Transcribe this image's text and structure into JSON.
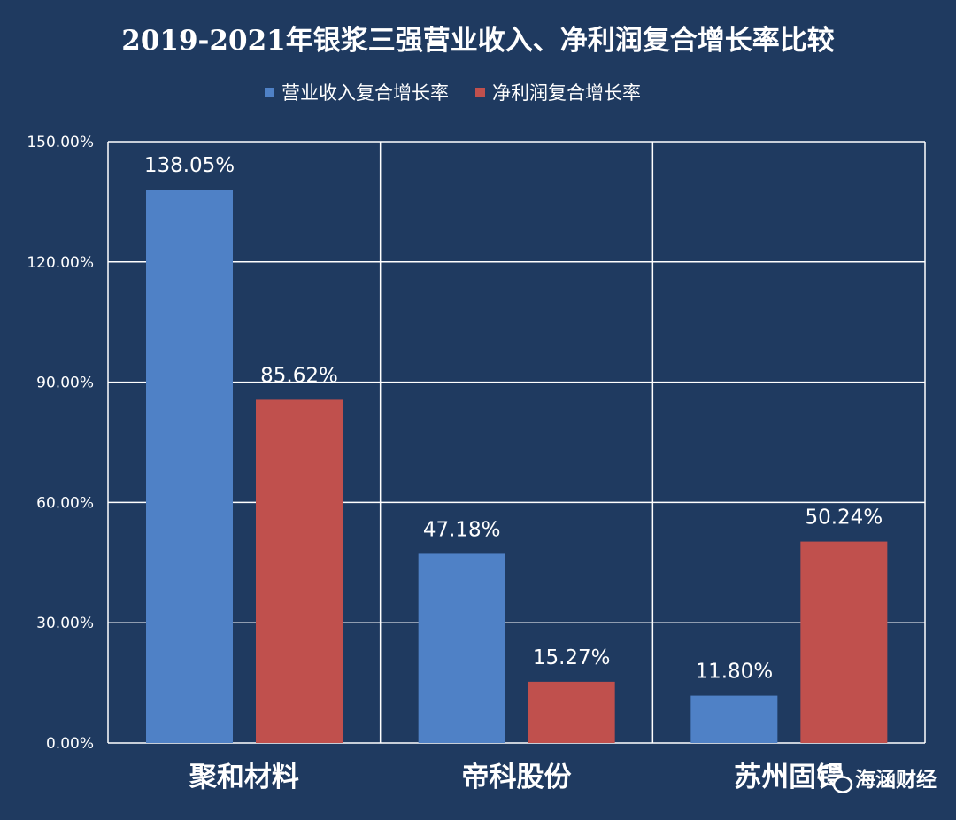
{
  "chart_data": {
    "type": "bar",
    "title": "2019-2021年银浆三强营业收入、净利润复合增长率比较",
    "categories": [
      "聚和材料",
      "帝科股份",
      "苏州固锝"
    ],
    "series": [
      {
        "name": "营业收入复合增长率",
        "values": [
          138.05,
          47.18,
          11.8
        ],
        "labels": [
          "138.05%",
          "47.18%",
          "11.80%"
        ],
        "color": "#4f81c6"
      },
      {
        "name": "净利润复合增长率",
        "values": [
          85.62,
          15.27,
          50.24
        ],
        "labels": [
          "85.62%",
          "15.27%",
          "50.24%"
        ],
        "color": "#c0504d"
      }
    ],
    "ylim": [
      0,
      150
    ],
    "yticks": [
      0,
      30,
      60,
      90,
      120,
      150
    ],
    "ytick_labels": [
      "0.00%",
      "30.00%",
      "60.00%",
      "90.00%",
      "120.00%",
      "150.00%"
    ],
    "grid": true,
    "legend_position": "top"
  },
  "watermark": {
    "text": "海涵财经",
    "icon": "wechat-icon"
  },
  "colors": {
    "background": "#1f3a60",
    "grid": "#ffffff",
    "text": "#ffffff"
  }
}
